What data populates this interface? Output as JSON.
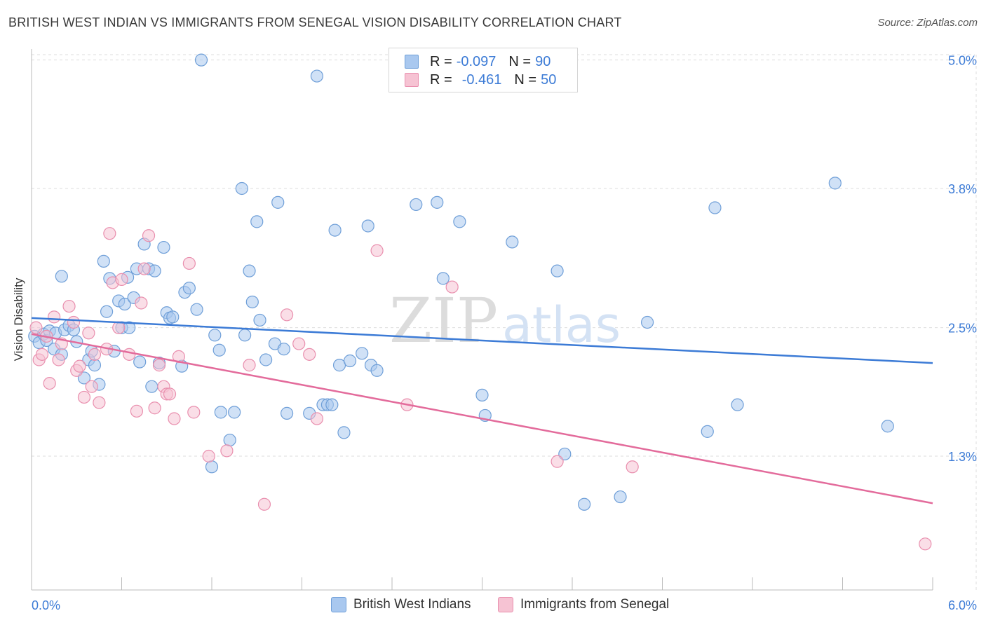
{
  "title": "BRITISH WEST INDIAN VS IMMIGRANTS FROM SENEGAL VISION DISABILITY CORRELATION CHART",
  "source": "Source: ZipAtlas.com",
  "watermark": {
    "zip": "ZIP",
    "atlas": "atlas"
  },
  "legend": {
    "rows": [
      {
        "r_label": "R =",
        "r_value": "-0.097",
        "n_label": "N =",
        "n_value": "90",
        "color": "#a9c8ef",
        "stroke": "#6f9fd8"
      },
      {
        "r_label": "R =",
        "r_value": "-0.461",
        "n_label": "N =",
        "n_value": "50",
        "color": "#f6c3d3",
        "stroke": "#e98fae"
      }
    ]
  },
  "chart_data": {
    "type": "scatter",
    "title": "BRITISH WEST INDIAN VS IMMIGRANTS FROM SENEGAL VISION DISABILITY CORRELATION CHART",
    "xlabel": "",
    "ylabel": "Vision Disability",
    "xlim": [
      0.0,
      6.0
    ],
    "ylim": [
      0.05,
      5.2
    ],
    "x_tick_labels": [
      "0.0%",
      "6.0%"
    ],
    "y_ticks": [
      1.3,
      2.5,
      3.8,
      5.0
    ],
    "y_tick_labels": [
      "1.3%",
      "2.5%",
      "3.8%",
      "5.0%"
    ],
    "grid": true,
    "legend_position": "bottom",
    "series": [
      {
        "name": "British West Indians",
        "color": "#a9c8ef",
        "stroke": "#6f9fd8",
        "trend": {
          "x": [
            0.0,
            6.0
          ],
          "y": [
            2.59,
            2.17
          ],
          "color": "#3c7bd6"
        },
        "points": [
          [
            0.02,
            2.42
          ],
          [
            0.05,
            2.36
          ],
          [
            0.08,
            2.44
          ],
          [
            0.1,
            2.38
          ],
          [
            0.12,
            2.47
          ],
          [
            0.15,
            2.3
          ],
          [
            0.16,
            2.45
          ],
          [
            0.2,
            2.25
          ],
          [
            0.22,
            2.48
          ],
          [
            0.25,
            2.52
          ],
          [
            0.28,
            2.48
          ],
          [
            0.3,
            2.37
          ],
          [
            0.2,
            2.98
          ],
          [
            0.35,
            2.03
          ],
          [
            0.38,
            2.2
          ],
          [
            0.4,
            2.28
          ],
          [
            0.42,
            2.15
          ],
          [
            0.45,
            1.97
          ],
          [
            0.48,
            3.12
          ],
          [
            0.5,
            2.65
          ],
          [
            0.52,
            2.96
          ],
          [
            0.55,
            2.28
          ],
          [
            0.58,
            2.75
          ],
          [
            0.6,
            2.5
          ],
          [
            0.62,
            2.72
          ],
          [
            0.64,
            2.97
          ],
          [
            0.65,
            2.5
          ],
          [
            0.68,
            2.78
          ],
          [
            0.7,
            3.05
          ],
          [
            0.72,
            2.18
          ],
          [
            0.75,
            3.28
          ],
          [
            0.78,
            3.05
          ],
          [
            0.8,
            1.95
          ],
          [
            0.82,
            3.03
          ],
          [
            0.85,
            2.17
          ],
          [
            0.88,
            3.25
          ],
          [
            0.9,
            2.64
          ],
          [
            0.92,
            2.59
          ],
          [
            0.94,
            2.6
          ],
          [
            1.0,
            2.14
          ],
          [
            1.02,
            2.83
          ],
          [
            1.05,
            2.87
          ],
          [
            1.1,
            2.67
          ],
          [
            1.13,
            5.0
          ],
          [
            1.2,
            1.2
          ],
          [
            1.22,
            2.43
          ],
          [
            1.25,
            2.29
          ],
          [
            1.26,
            1.71
          ],
          [
            1.32,
            1.45
          ],
          [
            1.35,
            1.71
          ],
          [
            1.4,
            3.8
          ],
          [
            1.42,
            2.43
          ],
          [
            1.45,
            3.03
          ],
          [
            1.47,
            2.74
          ],
          [
            1.5,
            3.49
          ],
          [
            1.52,
            2.57
          ],
          [
            1.56,
            2.2
          ],
          [
            1.62,
            2.35
          ],
          [
            1.64,
            3.67
          ],
          [
            1.68,
            2.3
          ],
          [
            1.7,
            1.7
          ],
          [
            1.85,
            1.7
          ],
          [
            1.9,
            4.85
          ],
          [
            1.94,
            1.78
          ],
          [
            1.97,
            1.78
          ],
          [
            2.0,
            1.78
          ],
          [
            2.02,
            3.41
          ],
          [
            2.05,
            2.15
          ],
          [
            2.08,
            1.52
          ],
          [
            2.12,
            2.19
          ],
          [
            2.2,
            2.26
          ],
          [
            2.24,
            3.45
          ],
          [
            2.26,
            2.15
          ],
          [
            2.3,
            2.1
          ],
          [
            2.56,
            3.65
          ],
          [
            2.7,
            3.67
          ],
          [
            2.74,
            2.96
          ],
          [
            2.85,
            3.49
          ],
          [
            3.0,
            1.87
          ],
          [
            3.02,
            1.68
          ],
          [
            3.2,
            3.3
          ],
          [
            3.5,
            3.03
          ],
          [
            3.55,
            1.32
          ],
          [
            3.68,
            0.85
          ],
          [
            3.92,
            0.92
          ],
          [
            4.1,
            2.55
          ],
          [
            4.5,
            1.53
          ],
          [
            4.55,
            3.62
          ],
          [
            4.7,
            1.78
          ],
          [
            5.35,
            3.85
          ],
          [
            5.7,
            1.58
          ]
        ]
      },
      {
        "name": "Immigrants from Senegal",
        "color": "#f6c3d3",
        "stroke": "#e98fae",
        "trend": {
          "x": [
            0.0,
            6.0
          ],
          "y": [
            2.44,
            0.86
          ],
          "color": "#e36b9b"
        },
        "points": [
          [
            0.03,
            2.5
          ],
          [
            0.05,
            2.2
          ],
          [
            0.07,
            2.25
          ],
          [
            0.1,
            2.42
          ],
          [
            0.12,
            1.98
          ],
          [
            0.15,
            2.6
          ],
          [
            0.18,
            2.2
          ],
          [
            0.2,
            2.35
          ],
          [
            0.25,
            2.7
          ],
          [
            0.28,
            2.55
          ],
          [
            0.3,
            2.1
          ],
          [
            0.32,
            2.14
          ],
          [
            0.35,
            1.85
          ],
          [
            0.38,
            2.45
          ],
          [
            0.4,
            1.95
          ],
          [
            0.42,
            2.25
          ],
          [
            0.45,
            1.8
          ],
          [
            0.5,
            2.3
          ],
          [
            0.52,
            3.38
          ],
          [
            0.54,
            2.92
          ],
          [
            0.58,
            2.5
          ],
          [
            0.6,
            2.95
          ],
          [
            0.65,
            2.25
          ],
          [
            0.7,
            1.72
          ],
          [
            0.73,
            2.73
          ],
          [
            0.75,
            3.05
          ],
          [
            0.78,
            3.36
          ],
          [
            0.82,
            1.75
          ],
          [
            0.85,
            2.15
          ],
          [
            0.88,
            1.95
          ],
          [
            0.9,
            1.88
          ],
          [
            0.92,
            1.88
          ],
          [
            0.95,
            1.65
          ],
          [
            0.98,
            2.23
          ],
          [
            1.05,
            3.1
          ],
          [
            1.08,
            1.71
          ],
          [
            1.18,
            1.3
          ],
          [
            1.3,
            1.35
          ],
          [
            1.45,
            2.15
          ],
          [
            1.55,
            0.85
          ],
          [
            1.7,
            2.62
          ],
          [
            1.78,
            2.35
          ],
          [
            1.85,
            2.25
          ],
          [
            1.9,
            1.65
          ],
          [
            2.3,
            3.22
          ],
          [
            2.5,
            1.78
          ],
          [
            2.8,
            2.88
          ],
          [
            3.5,
            1.25
          ],
          [
            4.0,
            1.2
          ],
          [
            5.95,
            0.48
          ]
        ]
      }
    ]
  },
  "bottom_legend": [
    "British West Indians",
    "Immigrants from Senegal"
  ]
}
